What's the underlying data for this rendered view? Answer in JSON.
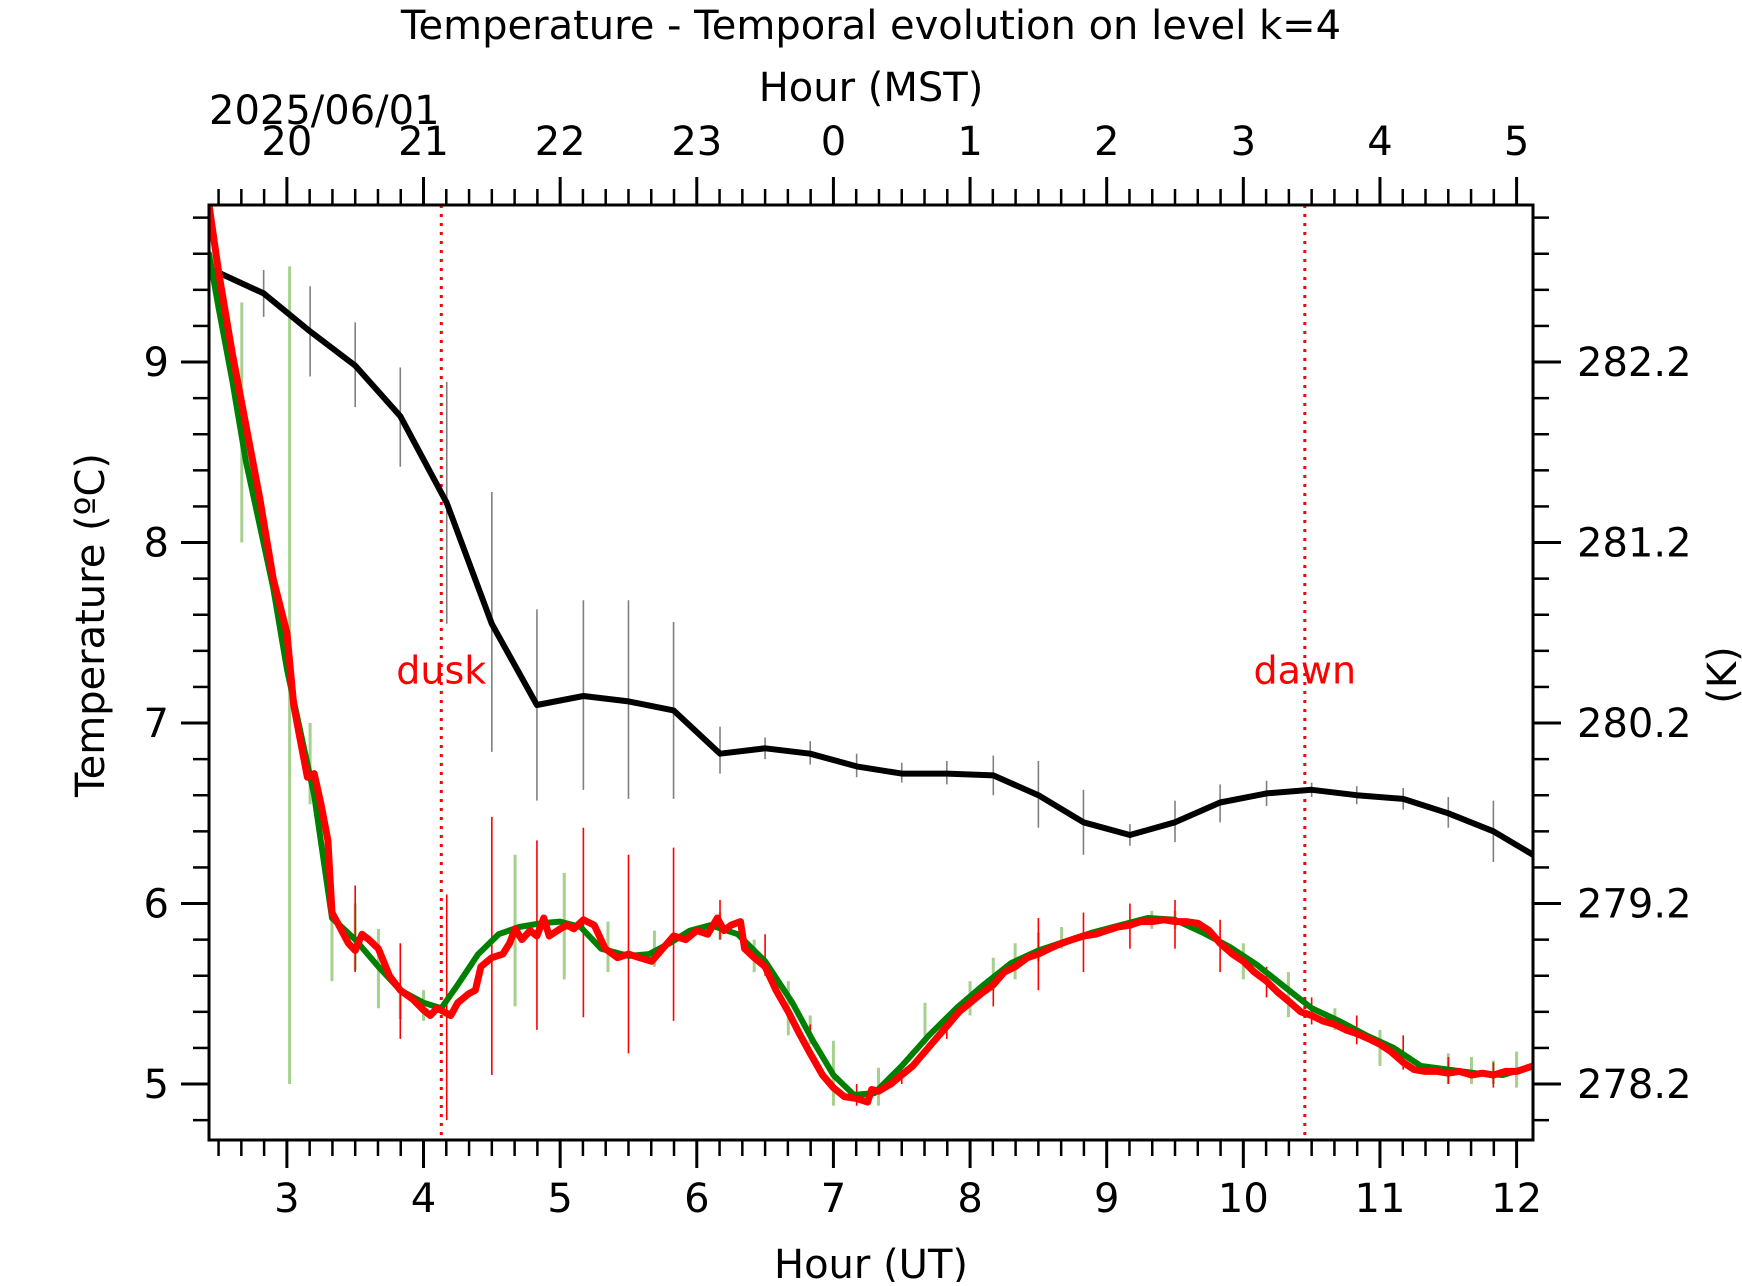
{
  "chart_data": {
    "type": "line",
    "title": "Temperature - Temporal evolution on level k=4",
    "date_label": "2025/06/01",
    "xlabel": "Hour (UT)",
    "xlabel_top": "Hour (MST)",
    "ylabel": "Temperature (ºC)",
    "ylabel_right": "(K)",
    "xlim": [
      2.43,
      12.12
    ],
    "ylim": [
      4.69,
      9.87
    ],
    "x_ticks": [
      3,
      4,
      5,
      6,
      7,
      8,
      9,
      10,
      11,
      12
    ],
    "x_ticks_top": [
      {
        "label": "20",
        "ut": 3
      },
      {
        "label": "21",
        "ut": 4
      },
      {
        "label": "22",
        "ut": 5
      },
      {
        "label": "23",
        "ut": 6
      },
      {
        "label": "0",
        "ut": 7
      },
      {
        "label": "1",
        "ut": 8
      },
      {
        "label": "2",
        "ut": 9
      },
      {
        "label": "3",
        "ut": 10
      },
      {
        "label": "4",
        "ut": 11
      },
      {
        "label": "5",
        "ut": 12
      }
    ],
    "y_ticks": [
      5,
      6,
      7,
      8,
      9
    ],
    "y_ticks_right": [
      {
        "label": "278.2",
        "value": 5
      },
      {
        "label": "279.2",
        "value": 6
      },
      {
        "label": "280.2",
        "value": 7
      },
      {
        "label": "281.2",
        "value": 8
      },
      {
        "label": "282.2",
        "value": 9
      }
    ],
    "grid": false,
    "annotations": [
      {
        "text": "dusk",
        "x": 4.13,
        "y": 7.22,
        "color": "#ff0000"
      },
      {
        "text": "dawn",
        "x": 10.45,
        "y": 7.22,
        "color": "#ff0000"
      }
    ],
    "vlines": [
      {
        "x": 4.13,
        "color": "#ff0000",
        "style": "dotted"
      },
      {
        "x": 10.45,
        "color": "#ff0000",
        "style": "dotted"
      }
    ],
    "series": [
      {
        "color": "#000000",
        "errorbar_color": "#808080",
        "x": [
          2.43,
          2.83,
          3.17,
          3.5,
          3.83,
          4.17,
          4.5,
          4.83,
          5.17,
          5.5,
          5.83,
          6.17,
          6.5,
          6.83,
          7.17,
          7.5,
          7.83,
          8.17,
          8.5,
          8.83,
          9.17,
          9.5,
          9.83,
          10.17,
          10.5,
          10.83,
          11.17,
          11.5,
          11.83,
          12.12
        ],
        "y": [
          9.52,
          9.38,
          9.17,
          8.98,
          8.7,
          8.22,
          7.55,
          7.1,
          7.15,
          7.12,
          7.07,
          6.83,
          6.86,
          6.83,
          6.76,
          6.72,
          6.72,
          6.71,
          6.6,
          6.45,
          6.38,
          6.45,
          6.56,
          6.61,
          6.63,
          6.6,
          6.58,
          6.5,
          6.4,
          6.27
        ],
        "err_lo": [
          null,
          9.25,
          8.92,
          8.75,
          8.42,
          7.55,
          6.84,
          6.57,
          6.63,
          6.58,
          6.58,
          6.72,
          6.8,
          6.77,
          6.7,
          6.67,
          6.66,
          6.6,
          6.42,
          6.27,
          6.32,
          6.34,
          6.45,
          6.54,
          6.59,
          6.55,
          6.52,
          6.42,
          6.23,
          null
        ],
        "err_hi": [
          null,
          9.51,
          9.42,
          9.22,
          8.97,
          8.89,
          8.28,
          7.63,
          7.68,
          7.68,
          7.56,
          6.98,
          6.92,
          6.9,
          6.83,
          6.78,
          6.79,
          6.82,
          6.79,
          6.63,
          6.44,
          6.57,
          6.66,
          6.68,
          6.67,
          6.65,
          6.64,
          6.59,
          6.57,
          null
        ]
      },
      {
        "color": "#008000",
        "errorbar_color": "#a6d08e",
        "x": [
          2.43,
          2.5,
          2.6,
          2.7,
          2.8,
          2.9,
          3.0,
          3.1,
          3.2,
          3.33,
          3.5,
          3.67,
          3.83,
          4.0,
          4.13,
          4.25,
          4.4,
          4.55,
          4.7,
          4.85,
          5.0,
          5.15,
          5.3,
          5.5,
          5.65,
          5.8,
          5.95,
          6.1,
          6.3,
          6.5,
          6.7,
          6.85,
          7.0,
          7.15,
          7.3,
          7.5,
          7.7,
          7.9,
          8.1,
          8.3,
          8.5,
          8.7,
          8.9,
          9.1,
          9.3,
          9.5,
          9.7,
          9.9,
          10.1,
          10.3,
          10.5,
          10.7,
          10.9,
          11.1,
          11.3,
          11.5,
          11.7,
          11.9,
          12.12
        ],
        "y": [
          9.6,
          9.3,
          8.9,
          8.45,
          8.1,
          7.75,
          7.3,
          6.95,
          6.6,
          5.92,
          5.8,
          5.65,
          5.52,
          5.45,
          5.42,
          5.55,
          5.72,
          5.83,
          5.87,
          5.89,
          5.9,
          5.87,
          5.75,
          5.71,
          5.72,
          5.78,
          5.85,
          5.88,
          5.83,
          5.68,
          5.45,
          5.24,
          5.05,
          4.94,
          4.95,
          5.1,
          5.27,
          5.42,
          5.55,
          5.67,
          5.74,
          5.79,
          5.84,
          5.88,
          5.92,
          5.91,
          5.84,
          5.76,
          5.66,
          5.54,
          5.42,
          5.35,
          5.27,
          5.2,
          5.1,
          5.08,
          5.06,
          5.05,
          5.1
        ],
        "err_x": [
          2.67,
          3.02,
          3.17,
          3.33,
          3.5,
          3.67,
          3.83,
          4.0,
          4.67,
          5.03,
          5.35,
          5.69,
          6.17,
          6.42,
          6.67,
          6.83,
          7.0,
          7.33,
          7.67,
          8.0,
          8.17,
          8.33,
          8.5,
          8.67,
          9.33,
          9.5,
          10.0,
          10.33,
          10.67,
          11.0,
          11.5,
          11.67,
          11.83,
          12.0
        ],
        "err_lo": [
          8.0,
          5.0,
          6.55,
          5.57,
          5.63,
          5.42,
          5.36,
          5.35,
          5.43,
          5.58,
          5.62,
          5.65,
          5.8,
          5.62,
          5.27,
          5.22,
          4.88,
          4.88,
          5.22,
          5.38,
          5.52,
          5.58,
          5.68,
          5.75,
          5.86,
          5.86,
          5.58,
          5.37,
          5.3,
          5.1,
          5.0,
          5.0,
          5.0,
          4.98
        ],
        "err_hi": [
          9.33,
          9.53,
          7.0,
          6.1,
          6.0,
          5.86,
          5.55,
          5.52,
          6.27,
          6.17,
          5.9,
          5.85,
          5.95,
          5.8,
          5.57,
          5.38,
          5.24,
          5.09,
          5.45,
          5.57,
          5.7,
          5.78,
          5.84,
          5.87,
          5.96,
          5.96,
          5.78,
          5.62,
          5.42,
          5.3,
          5.17,
          5.15,
          5.13,
          5.18
        ]
      },
      {
        "color": "#ff0000",
        "errorbar_color": "#ff0000",
        "x": [
          2.43,
          2.5,
          2.6,
          2.7,
          2.8,
          2.9,
          3.0,
          3.05,
          3.1,
          3.15,
          3.2,
          3.25,
          3.3,
          3.33,
          3.38,
          3.45,
          3.5,
          3.55,
          3.6,
          3.67,
          3.75,
          3.83,
          3.92,
          4.0,
          4.05,
          4.1,
          4.15,
          4.2,
          4.25,
          4.33,
          4.38,
          4.42,
          4.5,
          4.58,
          4.63,
          4.67,
          4.72,
          4.78,
          4.83,
          4.88,
          4.92,
          5.0,
          5.05,
          5.1,
          5.17,
          5.25,
          5.33,
          5.42,
          5.5,
          5.58,
          5.67,
          5.75,
          5.83,
          5.92,
          6.0,
          6.08,
          6.15,
          6.2,
          6.25,
          6.32,
          6.35,
          6.42,
          6.5,
          6.58,
          6.67,
          6.75,
          6.83,
          6.92,
          7.0,
          7.08,
          7.17,
          7.25,
          7.28,
          7.33,
          7.42,
          7.5,
          7.58,
          7.67,
          7.75,
          7.83,
          7.92,
          8.0,
          8.08,
          8.17,
          8.25,
          8.33,
          8.42,
          8.5,
          8.58,
          8.67,
          8.75,
          8.83,
          8.92,
          9.0,
          9.08,
          9.17,
          9.25,
          9.33,
          9.42,
          9.5,
          9.58,
          9.67,
          9.75,
          9.83,
          9.92,
          10.0,
          10.08,
          10.17,
          10.25,
          10.33,
          10.42,
          10.5,
          10.58,
          10.67,
          10.75,
          10.83,
          10.92,
          11.0,
          11.08,
          11.17,
          11.25,
          11.33,
          11.42,
          11.5,
          11.58,
          11.67,
          11.75,
          11.83,
          11.92,
          12.0,
          12.12
        ],
        "y": [
          9.87,
          9.5,
          9.05,
          8.65,
          8.25,
          7.8,
          7.5,
          7.1,
          6.9,
          6.7,
          6.72,
          6.55,
          6.35,
          5.95,
          5.88,
          5.78,
          5.74,
          5.83,
          5.8,
          5.75,
          5.6,
          5.52,
          5.47,
          5.41,
          5.38,
          5.42,
          5.4,
          5.38,
          5.45,
          5.5,
          5.52,
          5.65,
          5.7,
          5.72,
          5.78,
          5.86,
          5.8,
          5.85,
          5.82,
          5.92,
          5.82,
          5.86,
          5.88,
          5.86,
          5.91,
          5.88,
          5.75,
          5.7,
          5.72,
          5.7,
          5.68,
          5.75,
          5.82,
          5.8,
          5.85,
          5.83,
          5.92,
          5.85,
          5.88,
          5.9,
          5.75,
          5.7,
          5.65,
          5.52,
          5.4,
          5.28,
          5.17,
          5.05,
          4.98,
          4.93,
          4.92,
          4.9,
          4.97,
          4.96,
          5.0,
          5.05,
          5.1,
          5.18,
          5.25,
          5.32,
          5.4,
          5.45,
          5.5,
          5.55,
          5.62,
          5.65,
          5.7,
          5.72,
          5.75,
          5.78,
          5.8,
          5.82,
          5.83,
          5.85,
          5.87,
          5.88,
          5.9,
          5.9,
          5.91,
          5.9,
          5.9,
          5.89,
          5.85,
          5.78,
          5.72,
          5.68,
          5.62,
          5.57,
          5.51,
          5.46,
          5.4,
          5.38,
          5.35,
          5.33,
          5.3,
          5.28,
          5.25,
          5.22,
          5.18,
          5.12,
          5.08,
          5.07,
          5.07,
          5.06,
          5.07,
          5.05,
          5.06,
          5.05,
          5.07,
          5.07,
          5.1
        ],
        "err_x": [
          3.5,
          3.83,
          4.17,
          4.5,
          4.83,
          5.17,
          5.5,
          5.83,
          6.17,
          6.5,
          6.83,
          7.17,
          7.5,
          7.83,
          8.17,
          8.5,
          8.83,
          9.17,
          9.5,
          9.83,
          10.17,
          10.5,
          10.83,
          11.17,
          11.5,
          11.83
        ],
        "err_lo": [
          5.62,
          5.25,
          4.8,
          5.05,
          5.3,
          5.37,
          5.17,
          5.35,
          5.8,
          5.6,
          5.28,
          4.88,
          5.0,
          5.25,
          5.43,
          5.52,
          5.62,
          5.75,
          5.75,
          5.62,
          5.48,
          5.33,
          5.22,
          5.08,
          5.0,
          4.98
        ],
        "err_hi": [
          6.1,
          5.78,
          6.05,
          6.48,
          6.35,
          6.42,
          6.27,
          6.31,
          6.02,
          5.83,
          5.33,
          5.0,
          5.08,
          5.38,
          5.61,
          5.92,
          5.95,
          6.0,
          6.02,
          5.91,
          5.65,
          5.48,
          5.38,
          5.27,
          5.15,
          5.12
        ]
      }
    ]
  }
}
